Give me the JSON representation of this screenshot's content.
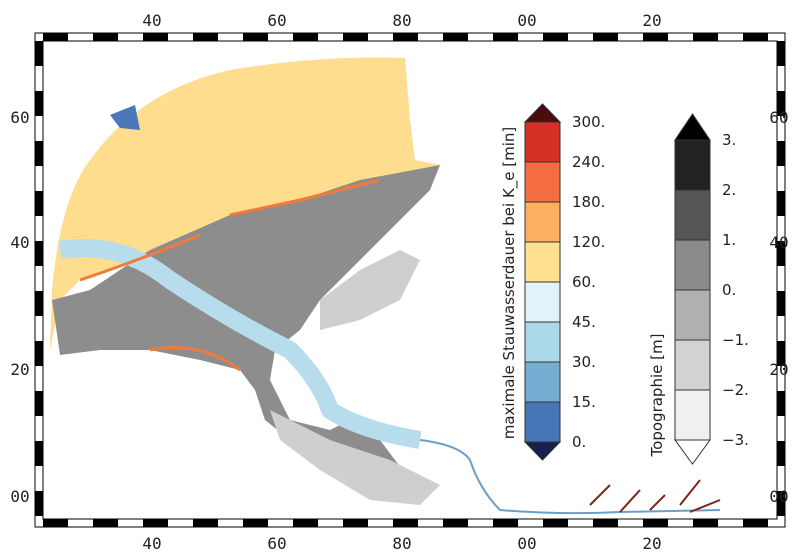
{
  "map": {
    "top_labels": [
      "40",
      "60",
      "80",
      "00",
      "20"
    ],
    "bottom_labels": [
      "40",
      "60",
      "80",
      "00",
      "20"
    ],
    "left_labels": [
      "60",
      "40",
      "20",
      "00"
    ],
    "right_labels": [
      "60",
      "40",
      "20",
      "00"
    ]
  },
  "legend_duration": {
    "title": "maximale Stauwasserdauer bei K_e [min]",
    "labels": [
      "300.",
      "240.",
      "180.",
      "120.",
      "60.",
      "45.",
      "30.",
      "15.",
      "0."
    ]
  },
  "legend_topography": {
    "title": "Topographie [m]",
    "labels": [
      "3.",
      "2.",
      "1.",
      "0.",
      "−1.",
      "−2.",
      "−3."
    ]
  }
}
